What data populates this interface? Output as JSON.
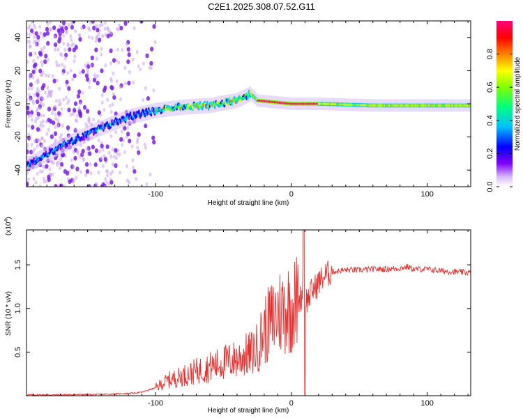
{
  "title": "C2E1.2025.308.07.52.G11",
  "chart_data": [
    {
      "type": "heatmap",
      "name": "spectrogram",
      "xlabel": "Height of straight line (km)",
      "ylabel": "Frequency (Hz)",
      "xlim": [
        -195,
        132
      ],
      "ylim": [
        -50,
        50
      ],
      "xticks": [
        -100,
        0,
        100
      ],
      "xtick_labels": [
        "-100",
        "0",
        "100"
      ],
      "yticks": [
        -40,
        -20,
        0,
        20,
        40
      ],
      "ytick_labels": [
        "-40",
        "-20",
        "0",
        "20",
        "40"
      ],
      "colorbar": {
        "label": "Normalized spectral amplitude",
        "range": [
          0,
          1
        ],
        "ticks": [
          0.0,
          0.2,
          0.4,
          0.6,
          0.8
        ],
        "tick_labels": [
          "0.0",
          "0.2",
          "0.4",
          "0.6",
          "0.8"
        ],
        "colors": [
          "#ffffff",
          "#8000ff",
          "#0000ff",
          "#00c0ff",
          "#00ff80",
          "#80ff00",
          "#ffff00",
          "#ff8000",
          "#ff0000",
          "#ff0080"
        ]
      },
      "ridge": [
        {
          "x": -192,
          "y": -36
        },
        {
          "x": -175,
          "y": -28
        },
        {
          "x": -150,
          "y": -18
        },
        {
          "x": -120,
          "y": -8
        },
        {
          "x": -100,
          "y": -4
        },
        {
          "x": -80,
          "y": -2
        },
        {
          "x": -60,
          "y": -1
        },
        {
          "x": -40,
          "y": 2
        },
        {
          "x": -30,
          "y": 6
        },
        {
          "x": -25,
          "y": 2
        },
        {
          "x": 0,
          "y": 0
        },
        {
          "x": 20,
          "y": 0
        },
        {
          "x": 60,
          "y": -1
        },
        {
          "x": 100,
          "y": -1
        },
        {
          "x": 130,
          "y": -1
        }
      ]
    },
    {
      "type": "line",
      "name": "snr",
      "xlabel": "Height of straight line (km)",
      "ylabel": "SNR (10 * v/v)",
      "multiplier_label": "(x10",
      "multiplier_exp": "4",
      "xlim": [
        -195,
        132
      ],
      "ylim": [
        0,
        19000
      ],
      "xticks": [
        -100,
        0,
        100
      ],
      "xtick_labels": [
        "-100",
        "0",
        "100"
      ],
      "yticks": [
        5000,
        10000,
        15000
      ],
      "ytick_labels": [
        "0.5",
        "1.0",
        "1.5"
      ],
      "series": [
        {
          "name": "SNR",
          "color": "#e8302f",
          "x": [
            -195,
            -170,
            -140,
            -120,
            -110,
            -100,
            -95,
            -90,
            -85,
            -80,
            -75,
            -70,
            -65,
            -60,
            -55,
            -50,
            -45,
            -40,
            -35,
            -30,
            -25,
            -20,
            -15,
            -10,
            -5,
            0,
            3,
            6,
            8,
            9,
            10,
            12,
            15,
            18,
            20,
            25,
            30,
            35,
            40,
            50,
            60,
            70,
            80,
            85,
            90,
            100,
            110,
            120,
            132
          ],
          "y": [
            100,
            100,
            150,
            250,
            400,
            900,
            1400,
            1800,
            2000,
            2300,
            2500,
            2800,
            3000,
            3300,
            3500,
            3800,
            4000,
            4200,
            4600,
            4800,
            5500,
            7500,
            8500,
            9500,
            10000,
            10200,
            10500,
            11000,
            11500,
            17000,
            11000,
            11000,
            12000,
            12500,
            13000,
            13800,
            14200,
            14300,
            14400,
            14400,
            14500,
            14500,
            14600,
            14800,
            14500,
            14500,
            14300,
            14200,
            14100
          ]
        }
      ]
    }
  ]
}
